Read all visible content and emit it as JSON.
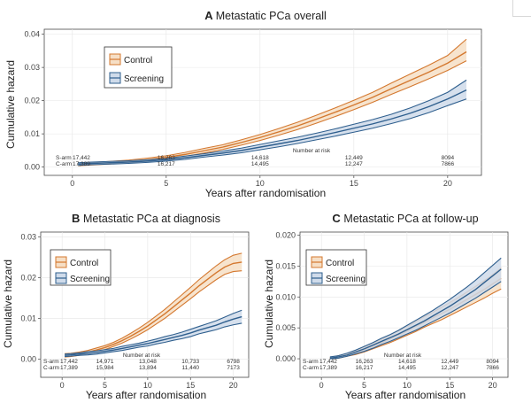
{
  "colors": {
    "control": "#d4782f",
    "control_fill": "#f6dfc6",
    "screening": "#2f5f8e",
    "screening_fill": "#cfdbea"
  },
  "chart_data": [
    {
      "type": "line",
      "panel_letter": "A",
      "title": "Metastatic PCa overall",
      "xlabel": "Years after randomisation",
      "ylabel": "Cumulative hazard",
      "xlim": [
        -1.5,
        21.8
      ],
      "ylim": [
        -0.0025,
        0.0415
      ],
      "x_ticks": [
        0,
        5,
        10,
        15,
        20
      ],
      "x_tick_labels": [
        "0",
        "5",
        "10",
        "15",
        "20"
      ],
      "y_ticks": [
        0,
        0.01,
        0.02,
        0.03,
        0.04
      ],
      "y_tick_labels": [
        "0.00",
        "0.01",
        "0.02",
        "0.03",
        "0.04"
      ],
      "grid": true,
      "legend_position": "top-left",
      "series": [
        {
          "name": "Control",
          "x": [
            0.3,
            1,
            2,
            3,
            4,
            5,
            6,
            7,
            8,
            9,
            10,
            11,
            12,
            13,
            14,
            15,
            16,
            17,
            18,
            19,
            20,
            21
          ],
          "mid": [
            0.0008,
            0.001,
            0.0013,
            0.0017,
            0.0022,
            0.0029,
            0.0038,
            0.0049,
            0.006,
            0.0074,
            0.0089,
            0.0106,
            0.0124,
            0.0144,
            0.0165,
            0.0187,
            0.021,
            0.0236,
            0.0261,
            0.0286,
            0.0313,
            0.0347
          ],
          "lower": [
            0.0004,
            0.0006,
            0.0009,
            0.0013,
            0.0017,
            0.0024,
            0.0032,
            0.0042,
            0.0053,
            0.0066,
            0.008,
            0.0096,
            0.0113,
            0.0132,
            0.0152,
            0.0173,
            0.0195,
            0.0219,
            0.0242,
            0.0266,
            0.0291,
            0.032
          ],
          "upper": [
            0.0012,
            0.0014,
            0.0017,
            0.0021,
            0.0027,
            0.0034,
            0.0044,
            0.0056,
            0.0067,
            0.0082,
            0.0098,
            0.0116,
            0.0135,
            0.0156,
            0.0178,
            0.0201,
            0.0225,
            0.0253,
            0.028,
            0.0307,
            0.0336,
            0.0385
          ]
        },
        {
          "name": "Screening",
          "x": [
            0.3,
            1,
            2,
            3,
            4,
            5,
            6,
            7,
            8,
            9,
            10,
            11,
            12,
            13,
            14,
            15,
            16,
            17,
            18,
            19,
            20,
            21
          ],
          "mid": [
            0.0009,
            0.0011,
            0.0013,
            0.0015,
            0.0018,
            0.0022,
            0.0028,
            0.0035,
            0.0042,
            0.005,
            0.006,
            0.007,
            0.008,
            0.0092,
            0.0104,
            0.0117,
            0.013,
            0.0145,
            0.0162,
            0.0182,
            0.0205,
            0.0232
          ],
          "lower": [
            0.0005,
            0.0007,
            0.0009,
            0.0011,
            0.0014,
            0.0018,
            0.0023,
            0.003,
            0.0036,
            0.0043,
            0.0052,
            0.0061,
            0.0071,
            0.0082,
            0.0093,
            0.0105,
            0.0117,
            0.0131,
            0.0146,
            0.0164,
            0.0185,
            0.0205
          ],
          "upper": [
            0.0013,
            0.0015,
            0.0017,
            0.0019,
            0.0022,
            0.0026,
            0.0033,
            0.004,
            0.0048,
            0.0057,
            0.0068,
            0.0079,
            0.009,
            0.0102,
            0.0115,
            0.0129,
            0.0143,
            0.0159,
            0.0178,
            0.02,
            0.0225,
            0.0262
          ]
        }
      ],
      "risk_table": {
        "title": "Number at risk",
        "rows": [
          {
            "label": "S-arm",
            "values": [
              "17,442",
              "16,263",
              "14,618",
              "12,449",
              "8094"
            ]
          },
          {
            "label": "C-arm",
            "values": [
              "17,389",
              "16,217",
              "14,495",
              "12,247",
              "7866"
            ]
          }
        ]
      }
    },
    {
      "type": "line",
      "panel_letter": "B",
      "title": "Metastatic PCa at diagnosis",
      "xlabel": "Years after randomisation",
      "ylabel": "Cumulative hazard",
      "xlim": [
        -2.5,
        21.8
      ],
      "ylim": [
        -0.0045,
        0.0312
      ],
      "x_ticks": [
        0,
        5,
        10,
        15,
        20
      ],
      "x_tick_labels": [
        "0",
        "5",
        "10",
        "15",
        "20"
      ],
      "y_ticks": [
        0,
        0.01,
        0.02,
        0.03
      ],
      "y_tick_labels": [
        "0.00",
        "0.01",
        "0.02",
        "0.03"
      ],
      "grid": true,
      "legend_position": "top-left",
      "series": [
        {
          "name": "Control",
          "x": [
            0.3,
            1,
            2,
            3,
            4,
            5,
            6,
            7,
            8,
            9,
            10,
            11,
            12,
            13,
            14,
            15,
            16,
            17,
            18,
            19,
            20,
            21
          ],
          "mid": [
            0.0009,
            0.001,
            0.0013,
            0.0017,
            0.0022,
            0.0028,
            0.0036,
            0.0045,
            0.0056,
            0.0068,
            0.0081,
            0.0096,
            0.0111,
            0.0128,
            0.0145,
            0.0162,
            0.018,
            0.0196,
            0.0212,
            0.0226,
            0.0235,
            0.0238
          ],
          "lower": [
            0.0005,
            0.0006,
            0.0009,
            0.0013,
            0.0017,
            0.0023,
            0.0031,
            0.0039,
            0.0049,
            0.006,
            0.0072,
            0.0086,
            0.01,
            0.0116,
            0.0132,
            0.0148,
            0.0165,
            0.018,
            0.0195,
            0.0208,
            0.0215,
            0.0217
          ],
          "upper": [
            0.0013,
            0.0014,
            0.0017,
            0.0021,
            0.0027,
            0.0033,
            0.0041,
            0.0051,
            0.0063,
            0.0076,
            0.009,
            0.0106,
            0.0122,
            0.014,
            0.0158,
            0.0176,
            0.0195,
            0.0212,
            0.0229,
            0.0244,
            0.0255,
            0.026
          ]
        },
        {
          "name": "Screening",
          "x": [
            0.3,
            1,
            2,
            3,
            4,
            5,
            6,
            7,
            8,
            9,
            10,
            11,
            12,
            13,
            14,
            15,
            16,
            17,
            18,
            19,
            20,
            21
          ],
          "mid": [
            0.0009,
            0.001,
            0.0012,
            0.0014,
            0.0016,
            0.0019,
            0.0022,
            0.0026,
            0.003,
            0.0034,
            0.0038,
            0.0043,
            0.0048,
            0.0053,
            0.0058,
            0.0064,
            0.0071,
            0.0077,
            0.0083,
            0.0091,
            0.0098,
            0.0104
          ],
          "lower": [
            0.0006,
            0.0007,
            0.0009,
            0.001,
            0.0012,
            0.0015,
            0.0018,
            0.0021,
            0.0025,
            0.0029,
            0.0032,
            0.0037,
            0.0041,
            0.0046,
            0.005,
            0.0055,
            0.0062,
            0.0067,
            0.0072,
            0.0079,
            0.0084,
            0.0088
          ],
          "upper": [
            0.0012,
            0.0013,
            0.0015,
            0.0018,
            0.002,
            0.0023,
            0.0026,
            0.0031,
            0.0035,
            0.0039,
            0.0044,
            0.0049,
            0.0055,
            0.006,
            0.0066,
            0.0073,
            0.008,
            0.0087,
            0.0094,
            0.0103,
            0.0112,
            0.012
          ]
        }
      ],
      "risk_table": {
        "title": "Number at risk",
        "rows": [
          {
            "label": "S-arm",
            "values": [
              "17,442",
              "14,971",
              "13,048",
              "10,733",
              "6798"
            ]
          },
          {
            "label": "C-arm",
            "values": [
              "17,389",
              "15,984",
              "13,894",
              "11,440",
              "7173"
            ]
          }
        ]
      }
    },
    {
      "type": "line",
      "panel_letter": "C",
      "title": "Metastatic PCa at follow-up",
      "xlabel": "Years after randomisation",
      "ylabel": "Cumulative hazard",
      "xlim": [
        -2.5,
        21.8
      ],
      "ylim": [
        -0.003,
        0.0205
      ],
      "x_ticks": [
        0,
        5,
        10,
        15,
        20
      ],
      "x_tick_labels": [
        "0",
        "5",
        "10",
        "15",
        "20"
      ],
      "y_ticks": [
        0,
        0.005,
        0.01,
        0.015,
        0.02
      ],
      "y_tick_labels": [
        "0.000",
        "0.005",
        "0.010",
        "0.015",
        "0.020"
      ],
      "grid": true,
      "legend_position": "top-left",
      "series": [
        {
          "name": "Control",
          "x": [
            1,
            2,
            3,
            4,
            5,
            6,
            7,
            8,
            9,
            10,
            11,
            12,
            13,
            14,
            15,
            16,
            17,
            18,
            19,
            20,
            21
          ],
          "mid": [
            0.0001,
            0.0003,
            0.0006,
            0.001,
            0.0015,
            0.002,
            0.0026,
            0.0032,
            0.0038,
            0.0045,
            0.0052,
            0.0059,
            0.0066,
            0.0073,
            0.008,
            0.0088,
            0.0096,
            0.0104,
            0.0112,
            0.0121,
            0.013
          ],
          "lower": [
            0.0,
            0.0001,
            0.0004,
            0.0007,
            0.0011,
            0.0016,
            0.0021,
            0.0026,
            0.0032,
            0.0038,
            0.0044,
            0.0051,
            0.0057,
            0.0063,
            0.007,
            0.0077,
            0.0084,
            0.0091,
            0.0098,
            0.0106,
            0.0113
          ],
          "upper": [
            0.0002,
            0.0005,
            0.0008,
            0.0013,
            0.0019,
            0.0025,
            0.0031,
            0.0038,
            0.0045,
            0.0052,
            0.006,
            0.0068,
            0.0075,
            0.0083,
            0.0091,
            0.0099,
            0.0108,
            0.0117,
            0.0126,
            0.0136,
            0.0147
          ]
        },
        {
          "name": "Screening",
          "x": [
            1,
            2,
            3,
            4,
            5,
            6,
            7,
            8,
            9,
            10,
            11,
            12,
            13,
            14,
            15,
            16,
            17,
            18,
            19,
            20,
            21
          ],
          "mid": [
            0.0001,
            0.0003,
            0.0006,
            0.0011,
            0.0016,
            0.0022,
            0.0028,
            0.0034,
            0.004,
            0.0047,
            0.0054,
            0.0061,
            0.0069,
            0.0077,
            0.0085,
            0.0094,
            0.0103,
            0.0112,
            0.0123,
            0.0134,
            0.0145
          ],
          "lower": [
            0.0,
            0.0001,
            0.0004,
            0.0008,
            0.0012,
            0.0017,
            0.0023,
            0.0028,
            0.0034,
            0.004,
            0.0046,
            0.0053,
            0.006,
            0.0067,
            0.0074,
            0.0082,
            0.009,
            0.0098,
            0.0107,
            0.0116,
            0.0125
          ],
          "upper": [
            0.0003,
            0.0005,
            0.0009,
            0.0014,
            0.002,
            0.0026,
            0.0033,
            0.0039,
            0.0046,
            0.0054,
            0.0062,
            0.007,
            0.0078,
            0.0087,
            0.0096,
            0.0106,
            0.0116,
            0.0127,
            0.0139,
            0.0151,
            0.0163
          ]
        }
      ],
      "risk_table": {
        "title": "Number at risk",
        "rows": [
          {
            "label": "S-arm",
            "values": [
              "17,442",
              "16,263",
              "14,618",
              "12,449",
              "8094"
            ]
          },
          {
            "label": "C-arm",
            "values": [
              "17,389",
              "16,217",
              "14,495",
              "12,247",
              "7866"
            ]
          }
        ]
      }
    }
  ]
}
